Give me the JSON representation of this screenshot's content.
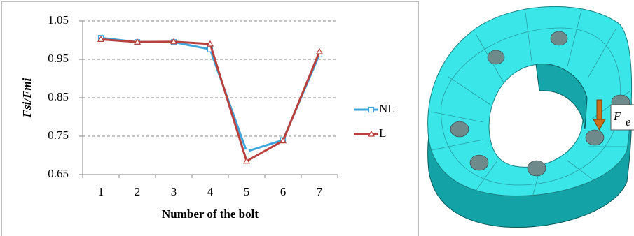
{
  "chart_data": {
    "type": "line",
    "x_label": "Number of the bolt",
    "y_label": "Fsi/Fmi",
    "categories": [
      "1",
      "2",
      "3",
      "4",
      "5",
      "6",
      "7"
    ],
    "series": [
      {
        "name": "NL",
        "color": "#3fa6dc",
        "marker": "square",
        "values": [
          1.006,
          0.995,
          0.995,
          0.976,
          0.71,
          0.74,
          0.963
        ]
      },
      {
        "name": "L",
        "color": "#b8413e",
        "marker": "triangle",
        "values": [
          1.002,
          0.995,
          0.996,
          0.99,
          0.685,
          0.738,
          0.97
        ]
      }
    ],
    "ylim": [
      0.65,
      1.05
    ],
    "yticks": [
      0.65,
      0.75,
      0.85,
      0.95,
      1.05
    ],
    "grid": true,
    "legend": "right"
  },
  "figure": {
    "label": {
      "main": "F",
      "subscript": "e"
    }
  }
}
